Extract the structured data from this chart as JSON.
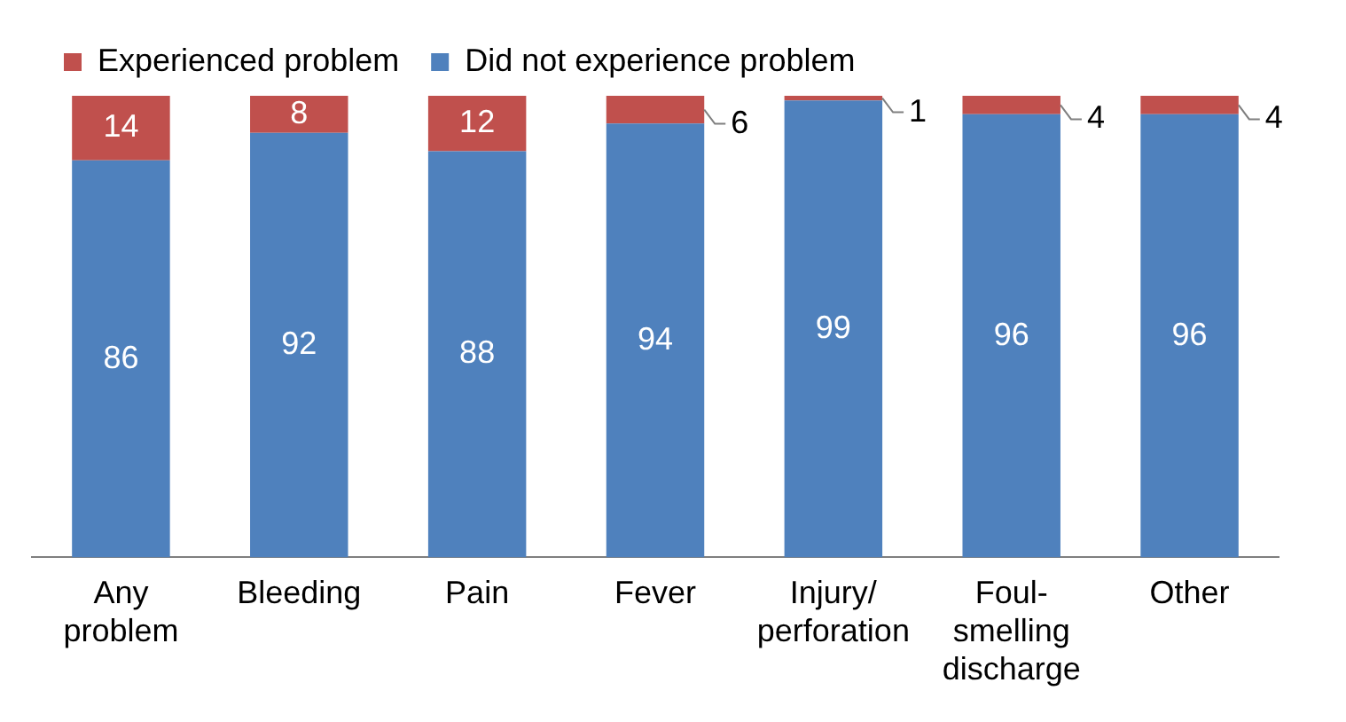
{
  "chart_data": {
    "type": "bar",
    "stacked": true,
    "data_labels": true,
    "legend": "top left",
    "grid": false,
    "categories": [
      "Any problem",
      "Bleeding",
      "Pain",
      "Fever",
      "Injury/perforation",
      "Foul-smelling discharge",
      "Other"
    ],
    "series": [
      {
        "name": "Did not experience problem",
        "color": "#4f81bd",
        "values": [
          86,
          92,
          88,
          94,
          99,
          96,
          96
        ]
      },
      {
        "name": "Experienced problem",
        "color": "#c0504d",
        "values": [
          14,
          8,
          12,
          6,
          1,
          4,
          4
        ]
      }
    ]
  }
}
